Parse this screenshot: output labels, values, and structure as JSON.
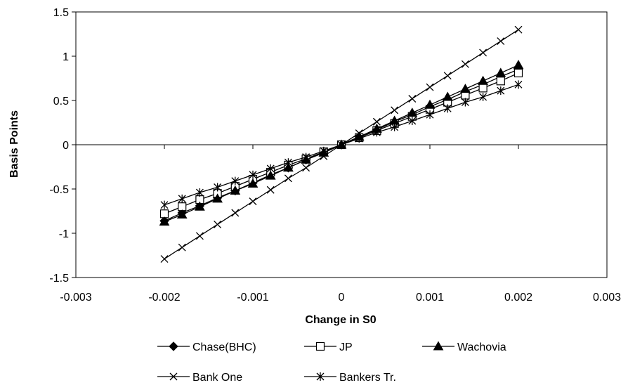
{
  "chart_data": {
    "type": "line",
    "xlabel": "Change in S0",
    "ylabel": "Basis Points",
    "xlim": [
      -0.003,
      0.003
    ],
    "ylim": [
      -1.5,
      1.5
    ],
    "x_ticks": [
      -0.003,
      -0.002,
      -0.001,
      0,
      0.001,
      0.002,
      0.003
    ],
    "x_tick_labels": [
      "-0.003",
      "-0.002",
      "-0.001",
      "0",
      "0.001",
      "0.002",
      "0.003"
    ],
    "y_ticks": [
      1.5,
      1,
      0.5,
      0,
      -0.5,
      -1,
      -1.5
    ],
    "y_tick_labels": [
      "1.5",
      "1",
      "0.5",
      "0",
      "-0.5",
      "-1",
      "-1.5"
    ],
    "grid": false,
    "legend_position": "bottom",
    "x": [
      -0.002,
      -0.0018,
      -0.0016,
      -0.0014,
      -0.0012,
      -0.001,
      -0.0008,
      -0.0006,
      -0.0004,
      -0.0002,
      0,
      0.0002,
      0.0004,
      0.0006,
      0.0008,
      0.001,
      0.0012,
      0.0014,
      0.0016,
      0.0018,
      0.002
    ],
    "series": [
      {
        "name": "Chase(BHC)",
        "marker": "diamond",
        "values": [
          -0.86,
          -0.77,
          -0.69,
          -0.6,
          -0.52,
          -0.43,
          -0.34,
          -0.26,
          -0.17,
          -0.09,
          0,
          0.09,
          0.17,
          0.26,
          0.34,
          0.43,
          0.51,
          0.6,
          0.68,
          0.77,
          0.85
        ]
      },
      {
        "name": "JP",
        "marker": "square-open",
        "values": [
          -0.78,
          -0.7,
          -0.62,
          -0.55,
          -0.47,
          -0.39,
          -0.31,
          -0.23,
          -0.16,
          -0.08,
          0,
          0.08,
          0.16,
          0.24,
          0.32,
          0.4,
          0.48,
          0.56,
          0.64,
          0.72,
          0.81
        ]
      },
      {
        "name": "Wachovia",
        "marker": "triangle",
        "values": [
          -0.87,
          -0.79,
          -0.7,
          -0.61,
          -0.52,
          -0.44,
          -0.35,
          -0.26,
          -0.17,
          -0.09,
          0,
          0.09,
          0.18,
          0.27,
          0.36,
          0.45,
          0.54,
          0.63,
          0.72,
          0.81,
          0.9
        ]
      },
      {
        "name": "Bank One",
        "marker": "x",
        "values": [
          -1.29,
          -1.16,
          -1.03,
          -0.9,
          -0.77,
          -0.64,
          -0.51,
          -0.38,
          -0.26,
          -0.13,
          0,
          0.13,
          0.26,
          0.39,
          0.52,
          0.65,
          0.78,
          0.91,
          1.04,
          1.17,
          1.3
        ]
      },
      {
        "name": "Bankers Tr.",
        "marker": "asterisk",
        "values": [
          -0.68,
          -0.61,
          -0.54,
          -0.48,
          -0.41,
          -0.34,
          -0.27,
          -0.2,
          -0.14,
          -0.07,
          0,
          0.07,
          0.14,
          0.2,
          0.27,
          0.34,
          0.41,
          0.48,
          0.54,
          0.61,
          0.68
        ]
      }
    ]
  }
}
